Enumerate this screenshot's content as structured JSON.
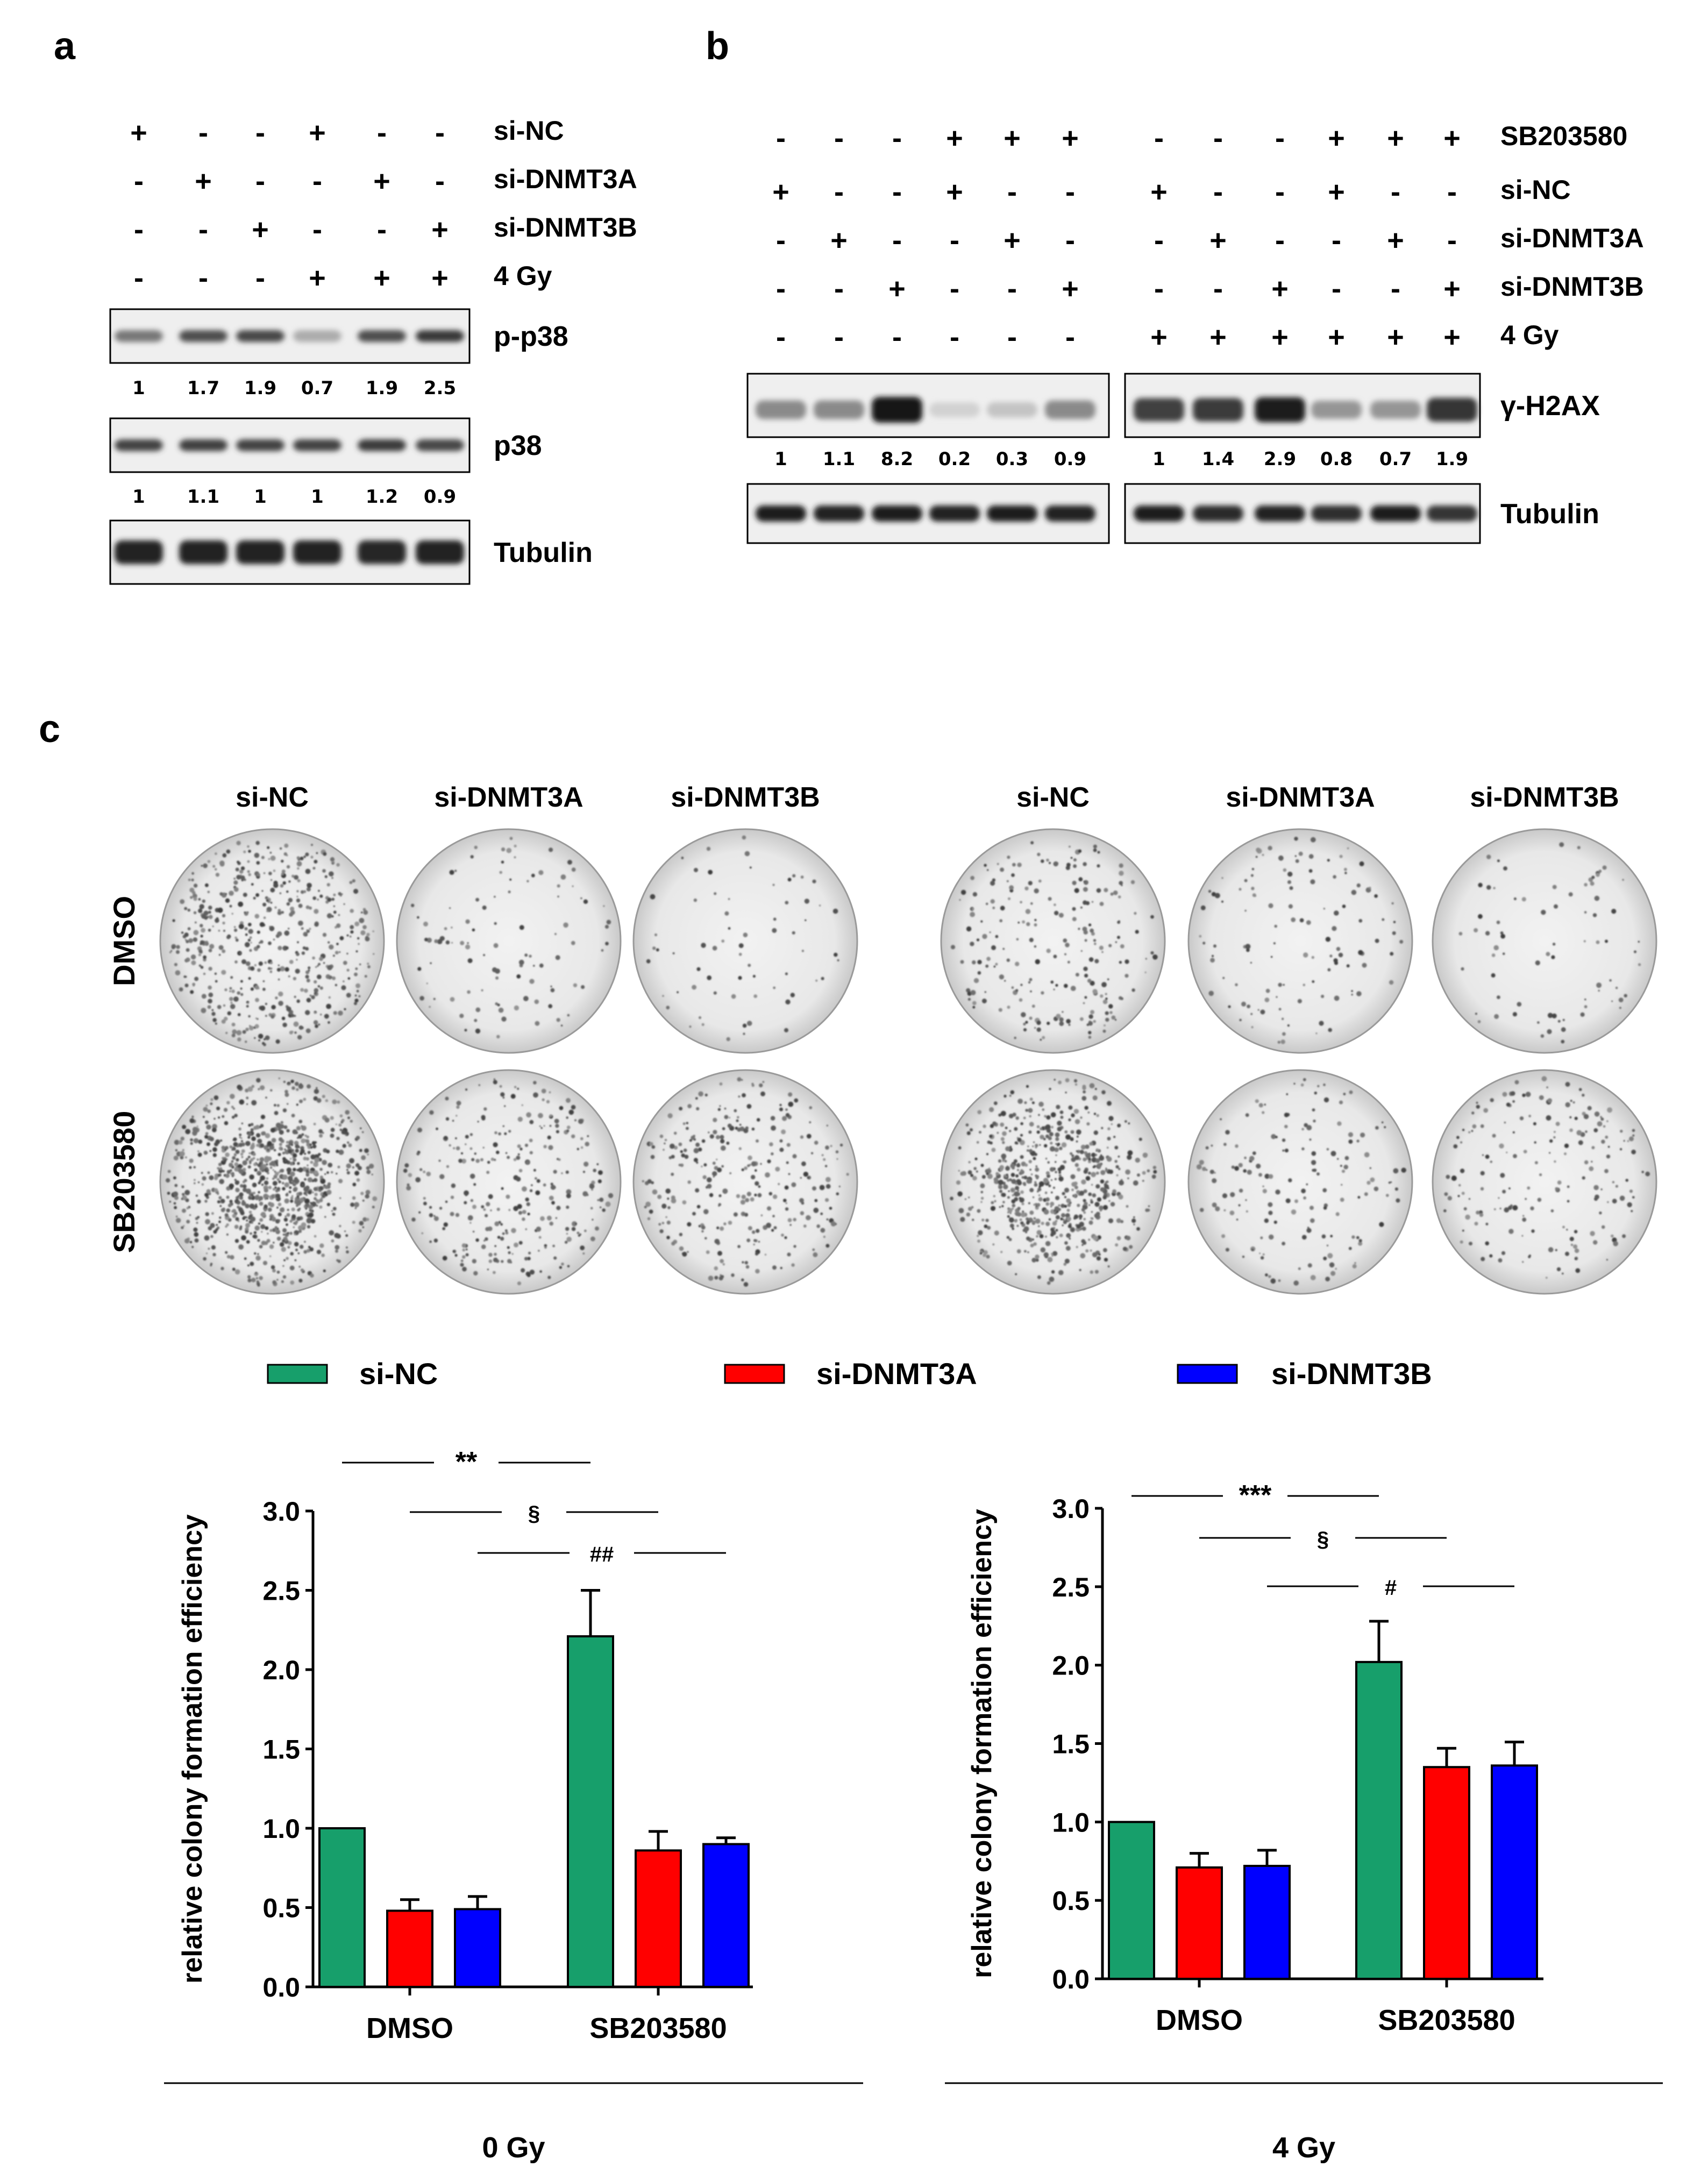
{
  "panels": {
    "a": {
      "letter": "a",
      "row_labels": [
        "si-NC",
        "si-DNMT3A",
        "si-DNMT3B",
        "4 Gy"
      ],
      "signs": [
        [
          "+",
          "-",
          "-",
          "+",
          "-",
          "-"
        ],
        [
          "-",
          "+",
          "-",
          "-",
          "+",
          "-"
        ],
        [
          "-",
          "-",
          "+",
          "-",
          "-",
          "+"
        ],
        [
          "-",
          "-",
          "-",
          "+",
          "+",
          "+"
        ]
      ],
      "blots": [
        {
          "label": "p-p38",
          "quant": [
            "1",
            "1.7",
            "1.9",
            "0.7",
            "1.9",
            "2.5"
          ],
          "intensity": [
            0.55,
            0.75,
            0.78,
            0.3,
            0.75,
            0.85
          ]
        },
        {
          "label": "p38",
          "quant": [
            "1",
            "1.1",
            "1",
            "1",
            "1.2",
            "0.9"
          ],
          "intensity": [
            0.8,
            0.82,
            0.8,
            0.8,
            0.84,
            0.78
          ]
        },
        {
          "label": "Tubulin",
          "quant": [],
          "intensity": [
            0.95,
            0.95,
            0.95,
            0.95,
            0.93,
            0.95
          ]
        }
      ]
    },
    "b": {
      "letter": "b",
      "row_labels": [
        "SB203580",
        "si-NC",
        "si-DNMT3A",
        "si-DNMT3B",
        "4 Gy"
      ],
      "signs": [
        [
          "-",
          "-",
          "-",
          "+",
          "+",
          "+",
          "-",
          "-",
          "-",
          "+",
          "+",
          "+"
        ],
        [
          "+",
          "-",
          "-",
          "+",
          "-",
          "-",
          "+",
          "-",
          "-",
          "+",
          "-",
          "-"
        ],
        [
          "-",
          "+",
          "-",
          "-",
          "+",
          "-",
          "-",
          "+",
          "-",
          "-",
          "+",
          "-"
        ],
        [
          "-",
          "-",
          "+",
          "-",
          "-",
          "+",
          "-",
          "-",
          "+",
          "-",
          "-",
          "+"
        ],
        [
          "-",
          "-",
          "-",
          "-",
          "-",
          "-",
          "+",
          "+",
          "+",
          "+",
          "+",
          "+"
        ]
      ],
      "blots": [
        {
          "label": "γ-H2AX",
          "quant": [
            "1",
            "1.1",
            "8.2",
            "0.2",
            "0.3",
            "0.9",
            "1",
            "1.4",
            "2.9",
            "0.8",
            "0.7",
            "1.9"
          ],
          "intensity": [
            0.45,
            0.45,
            1.0,
            0.12,
            0.18,
            0.45,
            0.8,
            0.82,
            0.95,
            0.4,
            0.4,
            0.85
          ]
        },
        {
          "label": "Tubulin",
          "quant": [],
          "intensity": [
            0.95,
            0.93,
            0.95,
            0.93,
            0.95,
            0.93,
            0.95,
            0.9,
            0.93,
            0.88,
            0.95,
            0.85
          ]
        }
      ]
    },
    "c": {
      "letter": "c",
      "column_labels": [
        "si-NC",
        "si-DNMT3A",
        "si-DNMT3B",
        "si-NC",
        "si-DNMT3A",
        "si-DNMT3B"
      ],
      "row_labels": [
        "DMSO",
        "SB203580"
      ],
      "colony_density": [
        [
          0.55,
          0.08,
          0.04,
          0.22,
          0.1,
          0.05
        ],
        [
          1.0,
          0.3,
          0.3,
          0.7,
          0.15,
          0.18
        ]
      ]
    }
  },
  "legend": [
    {
      "label": "si-NC",
      "color": "#179f6b"
    },
    {
      "label": "si-DNMT3A",
      "color": "#ff0000"
    },
    {
      "label": "si-DNMT3B",
      "color": "#0000ff"
    }
  ],
  "chart_data": [
    {
      "type": "bar",
      "title": "0 Gy",
      "xlabel": "0 Gy",
      "ylabel": "relative colony formation efficiency",
      "categories": [
        "DMSO",
        "SB203580"
      ],
      "series": [
        {
          "name": "si-NC",
          "values": [
            1.0,
            2.21
          ],
          "errors": [
            0,
            0.29
          ]
        },
        {
          "name": "si-DNMT3A",
          "values": [
            0.48,
            0.86
          ],
          "errors": [
            0.07,
            0.12
          ]
        },
        {
          "name": "si-DNMT3B",
          "values": [
            0.49,
            0.9
          ],
          "errors": [
            0.08,
            0.04
          ]
        }
      ],
      "ylim": [
        0,
        3.0
      ],
      "yticks": [
        "0.0",
        "0.5",
        "1.0",
        "1.5",
        "2.0",
        "2.5",
        "3.0"
      ],
      "significance": [
        {
          "label": "**",
          "from": [
            0,
            0
          ],
          "to": [
            1,
            0
          ]
        },
        {
          "label": "§",
          "from": [
            0,
            1
          ],
          "to": [
            1,
            1
          ]
        },
        {
          "label": "##",
          "from": [
            0,
            2
          ],
          "to": [
            1,
            2
          ]
        }
      ]
    },
    {
      "type": "bar",
      "title": "4 Gy",
      "xlabel": "4 Gy",
      "ylabel": "relative colony formation efficiency",
      "categories": [
        "DMSO",
        "SB203580"
      ],
      "series": [
        {
          "name": "si-NC",
          "values": [
            1.0,
            2.02
          ],
          "errors": [
            0,
            0.26
          ]
        },
        {
          "name": "si-DNMT3A",
          "values": [
            0.71,
            1.35
          ],
          "errors": [
            0.09,
            0.12
          ]
        },
        {
          "name": "si-DNMT3B",
          "values": [
            0.72,
            1.36
          ],
          "errors": [
            0.1,
            0.15
          ]
        }
      ],
      "ylim": [
        0,
        3.0
      ],
      "yticks": [
        "0.0",
        "0.5",
        "1.0",
        "1.5",
        "2.0",
        "2.5",
        "3.0"
      ],
      "significance": [
        {
          "label": "***",
          "from": [
            0,
            0
          ],
          "to": [
            1,
            0
          ]
        },
        {
          "label": "§",
          "from": [
            0,
            1
          ],
          "to": [
            1,
            1
          ]
        },
        {
          "label": "#",
          "from": [
            0,
            2
          ],
          "to": [
            1,
            2
          ]
        }
      ]
    }
  ]
}
